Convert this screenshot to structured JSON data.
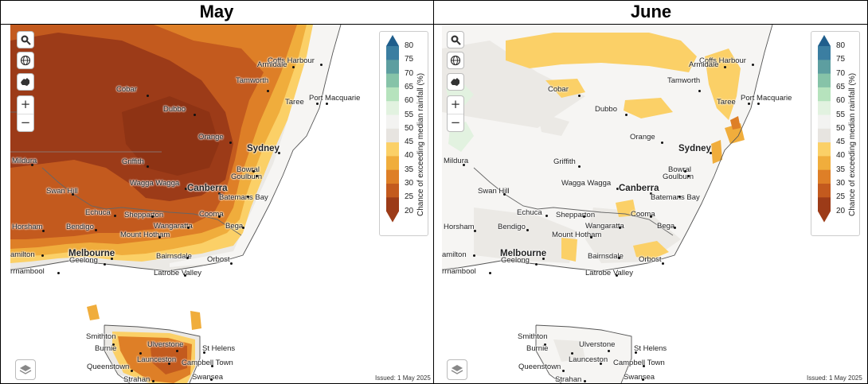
{
  "panels": [
    {
      "title": "May",
      "legend_title": "Chance of exceeding median rainfall (%)",
      "issued": "Issued: 1 May 2025"
    },
    {
      "title": "June",
      "legend_title": "Chance of exceeding median rainfall (%)",
      "issued": "Issued: 1 May 2025"
    }
  ],
  "legend": {
    "levels": [
      "80",
      "75",
      "70",
      "65",
      "60",
      "55",
      "50",
      "45",
      "40",
      "35",
      "30",
      "25",
      "20"
    ],
    "colors": [
      "#1f5e8c",
      "#3b7ea1",
      "#5d9ea0",
      "#86c3a8",
      "#b6e3bd",
      "#e2f2e0",
      "#f3f3f1",
      "#e7e4e0",
      "#fbd067",
      "#f0ad3c",
      "#de7f27",
      "#c35a1e",
      "#9c3b18"
    ]
  },
  "icons": [
    "search-icon",
    "globe-icon",
    "australia-icon",
    "zoom-in-icon",
    "zoom-out-icon",
    "layers-icon"
  ],
  "zoom": {
    "in": "+",
    "out": "−"
  },
  "cities": [
    {
      "name": "Coffs Harbour",
      "big": false
    },
    {
      "name": "Armidale",
      "big": false
    },
    {
      "name": "Tamworth",
      "big": false
    },
    {
      "name": "Port Macquarie",
      "big": false
    },
    {
      "name": "Taree",
      "big": false
    },
    {
      "name": "Cobar",
      "big": false
    },
    {
      "name": "Dubbo",
      "big": false
    },
    {
      "name": "Orange",
      "big": false
    },
    {
      "name": "Sydney",
      "big": true
    },
    {
      "name": "Mildura",
      "big": false
    },
    {
      "name": "Griffith",
      "big": false
    },
    {
      "name": "Bowral",
      "big": false
    },
    {
      "name": "Goulburn",
      "big": false
    },
    {
      "name": "Swan Hill",
      "big": false
    },
    {
      "name": "Wagga Wagga",
      "big": false
    },
    {
      "name": "Canberra",
      "big": true
    },
    {
      "name": "Batemans Bay",
      "big": false
    },
    {
      "name": "Echuca",
      "big": false
    },
    {
      "name": "Shepparton",
      "big": false
    },
    {
      "name": "Cooma",
      "big": false
    },
    {
      "name": "Horsham",
      "big": false
    },
    {
      "name": "Bendigo",
      "big": false
    },
    {
      "name": "Wangaratta",
      "big": false
    },
    {
      "name": "Bega",
      "big": false
    },
    {
      "name": "Mount Hotham",
      "big": false
    },
    {
      "name": "amilton",
      "big": false
    },
    {
      "name": "Melbourne",
      "big": true
    },
    {
      "name": "Geelong",
      "big": false
    },
    {
      "name": "Bairnsdale",
      "big": false
    },
    {
      "name": "Orbost",
      "big": false
    },
    {
      "name": "rrnambool",
      "big": false
    },
    {
      "name": "Latrobe Valley",
      "big": false
    },
    {
      "name": "Smithton",
      "big": false
    },
    {
      "name": "Burnie",
      "big": false
    },
    {
      "name": "Ulverstone",
      "big": false
    },
    {
      "name": "St Helens",
      "big": false
    },
    {
      "name": "Launceston",
      "big": false
    },
    {
      "name": "Queenstown",
      "big": false
    },
    {
      "name": "Campbell Town",
      "big": false
    },
    {
      "name": "Strahan",
      "big": false
    },
    {
      "name": "Swansea",
      "big": false
    }
  ]
}
